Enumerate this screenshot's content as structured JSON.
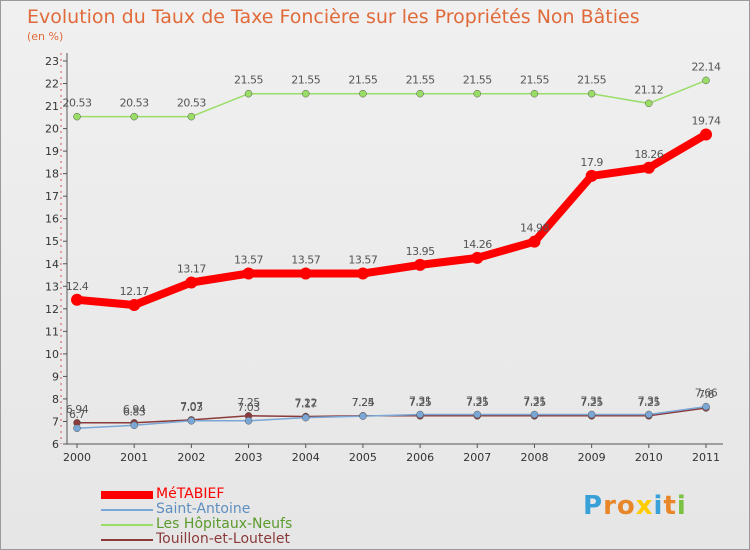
{
  "chart_title": "Evolution du Taux de Taxe Foncière sur les Propriétés Non Bâties",
  "chart_unit": "(en %)",
  "logo_text": "Proxiti",
  "chart_data": {
    "type": "line",
    "title": "Evolution du Taux de Taxe Foncière sur les Propriétés Non Bâties",
    "ylabel": "(en %)",
    "xlabel": "",
    "x": [
      "2000",
      "2001",
      "2002",
      "2003",
      "2004",
      "2005",
      "2006",
      "2007",
      "2008",
      "2009",
      "2010",
      "2011"
    ],
    "ylim": [
      6,
      23
    ],
    "yticks": [
      6,
      7,
      8,
      9,
      10,
      11,
      12,
      13,
      14,
      15,
      16,
      17,
      18,
      19,
      20,
      21,
      22,
      23
    ],
    "grid": false,
    "legend_position": "bottom-left",
    "series": [
      {
        "name": "MéTABIEF",
        "color": "#ff0000",
        "values": [
          12.4,
          12.17,
          13.17,
          13.57,
          13.57,
          13.57,
          13.95,
          14.26,
          14.98,
          17.9,
          18.26,
          19.74
        ],
        "labels": [
          "12.4",
          "12.17",
          "13.17",
          "13.57",
          "13.57",
          "13.57",
          "13.95",
          "14.26",
          "14.98",
          "17.9",
          "18.26",
          "19.74"
        ]
      },
      {
        "name": "Saint-Antoine",
        "color": "#7aa7d6",
        "values": [
          6.7,
          6.83,
          7.03,
          7.03,
          7.17,
          7.24,
          7.31,
          7.31,
          7.31,
          7.31,
          7.31,
          7.66
        ],
        "labels": [
          "6.7",
          "6.83",
          "7.03",
          "7.03",
          "7.17",
          "7.24",
          "7.31",
          "7.31",
          "7.31",
          "7.31",
          "7.31",
          "7.66"
        ]
      },
      {
        "name": "Les Hôpitaux-Neufs",
        "color": "#99dd66",
        "values": [
          20.53,
          20.53,
          20.53,
          21.55,
          21.55,
          21.55,
          21.55,
          21.55,
          21.55,
          21.55,
          21.12,
          22.14
        ],
        "labels": [
          "20.53",
          "20.53",
          "20.53",
          "21.55",
          "21.55",
          "21.55",
          "21.55",
          "21.55",
          "21.55",
          "21.55",
          "21.12",
          "22.14"
        ]
      },
      {
        "name": "Touillon-et-Loutelet",
        "color": "#8b3a3a",
        "values": [
          6.94,
          6.94,
          7.07,
          7.25,
          7.22,
          7.25,
          7.25,
          7.25,
          7.25,
          7.25,
          7.25,
          7.6
        ],
        "labels": [
          "6.94",
          "6.94",
          "7.07",
          "7.25",
          "7.22",
          "7.25",
          "7.25",
          "7.25",
          "7.25",
          "7.25",
          "7.25",
          "7.6"
        ]
      }
    ]
  }
}
